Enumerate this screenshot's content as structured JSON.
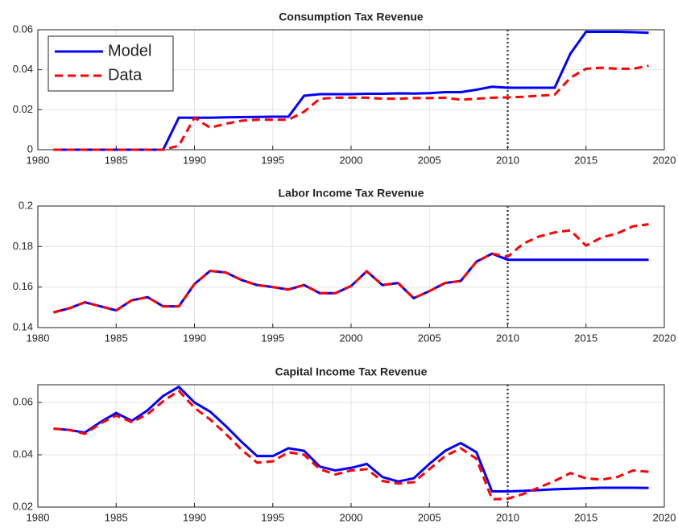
{
  "chart_data": [
    {
      "type": "line",
      "title": "Consumption Tax Revenue",
      "x": [
        1981,
        1982,
        1983,
        1984,
        1985,
        1986,
        1987,
        1988,
        1989,
        1990,
        1991,
        1992,
        1993,
        1994,
        1995,
        1996,
        1997,
        1998,
        1999,
        2000,
        2001,
        2002,
        2003,
        2004,
        2005,
        2006,
        2007,
        2008,
        2009,
        2010,
        2011,
        2012,
        2013,
        2014,
        2015,
        2016,
        2017,
        2018,
        2019
      ],
      "series": [
        {
          "name": "Model",
          "color": "#0000ff",
          "dash": false,
          "values": [
            0,
            0,
            0,
            0,
            0,
            0,
            0,
            0,
            0.016,
            0.016,
            0.016,
            0.0162,
            0.0163,
            0.0164,
            0.0165,
            0.0165,
            0.027,
            0.0278,
            0.0278,
            0.0278,
            0.028,
            0.028,
            0.0282,
            0.0281,
            0.0283,
            0.0288,
            0.0288,
            0.03,
            0.0315,
            0.031,
            0.031,
            0.031,
            0.031,
            0.048,
            0.059,
            0.059,
            0.059,
            0.0588,
            0.0585
          ]
        },
        {
          "name": "Data",
          "color": "#ff0000",
          "dash": true,
          "values": [
            0,
            0,
            0,
            0,
            0,
            0,
            0,
            0,
            0.002,
            0.016,
            0.011,
            0.013,
            0.0145,
            0.015,
            0.015,
            0.015,
            0.019,
            0.0255,
            0.026,
            0.026,
            0.026,
            0.0255,
            0.0255,
            0.0258,
            0.0258,
            0.026,
            0.025,
            0.0255,
            0.026,
            0.0262,
            0.0265,
            0.027,
            0.0275,
            0.036,
            0.0405,
            0.041,
            0.0405,
            0.0405,
            0.042
          ]
        }
      ],
      "xlim": [
        1980,
        2020
      ],
      "xticks": [
        1980,
        1985,
        1990,
        1995,
        2000,
        2005,
        2010,
        2015,
        2020
      ],
      "ylim": [
        0,
        0.06
      ],
      "yticks": [
        0,
        0.02,
        0.04,
        0.06
      ],
      "grid": true,
      "legend": "upper left",
      "vline": 2010
    },
    {
      "type": "line",
      "title": "Labor Income Tax Revenue",
      "x": [
        1981,
        1982,
        1983,
        1984,
        1985,
        1986,
        1987,
        1988,
        1989,
        1990,
        1991,
        1992,
        1993,
        1994,
        1995,
        1996,
        1997,
        1998,
        1999,
        2000,
        2001,
        2002,
        2003,
        2004,
        2005,
        2006,
        2007,
        2008,
        2009,
        2010,
        2011,
        2012,
        2013,
        2014,
        2015,
        2016,
        2017,
        2018,
        2019
      ],
      "series": [
        {
          "color": "#0000ff",
          "dash": false,
          "values": [
            0.1475,
            0.1495,
            0.1525,
            0.1505,
            0.1485,
            0.1535,
            0.155,
            0.1505,
            0.1505,
            0.1615,
            0.168,
            0.1672,
            0.1635,
            0.161,
            0.16,
            0.1588,
            0.161,
            0.157,
            0.157,
            0.1605,
            0.1678,
            0.161,
            0.162,
            0.1545,
            0.158,
            0.162,
            0.163,
            0.1725,
            0.1765,
            0.1735,
            0.1735,
            0.1735,
            0.1735,
            0.1735,
            0.1735,
            0.1735,
            0.1735,
            0.1735,
            0.1735
          ]
        },
        {
          "color": "#ff0000",
          "dash": true,
          "values": [
            0.1475,
            0.1495,
            0.1525,
            0.1505,
            0.1485,
            0.1535,
            0.155,
            0.1505,
            0.1505,
            0.1615,
            0.168,
            0.1672,
            0.1635,
            0.161,
            0.16,
            0.1588,
            0.161,
            0.157,
            0.157,
            0.1605,
            0.1678,
            0.161,
            0.162,
            0.1545,
            0.158,
            0.162,
            0.163,
            0.1725,
            0.1765,
            0.175,
            0.1815,
            0.185,
            0.187,
            0.188,
            0.1805,
            0.1845,
            0.1865,
            0.19,
            0.191
          ]
        }
      ],
      "xlim": [
        1980,
        2020
      ],
      "xticks": [
        1980,
        1985,
        1990,
        1995,
        2000,
        2005,
        2010,
        2015,
        2020
      ],
      "ylim": [
        0.14,
        0.2
      ],
      "yticks": [
        0.14,
        0.16,
        0.18,
        0.2
      ],
      "grid": true,
      "vline": 2010
    },
    {
      "type": "line",
      "title": "Capital Income Tax Revenue",
      "x": [
        1981,
        1982,
        1983,
        1984,
        1985,
        1986,
        1987,
        1988,
        1989,
        1990,
        1991,
        1992,
        1993,
        1994,
        1995,
        1996,
        1997,
        1998,
        1999,
        2000,
        2001,
        2002,
        2003,
        2004,
        2005,
        2006,
        2007,
        2008,
        2009,
        2010,
        2011,
        2012,
        2013,
        2014,
        2015,
        2016,
        2017,
        2018,
        2019
      ],
      "series": [
        {
          "color": "#0000ff",
          "dash": false,
          "values": [
            0.05,
            0.0495,
            0.0485,
            0.0525,
            0.056,
            0.053,
            0.057,
            0.0625,
            0.066,
            0.06,
            0.0565,
            0.051,
            0.045,
            0.0395,
            0.0395,
            0.0425,
            0.0415,
            0.0355,
            0.034,
            0.035,
            0.0365,
            0.0315,
            0.0298,
            0.031,
            0.0365,
            0.0415,
            0.0445,
            0.041,
            0.026,
            0.026,
            0.0262,
            0.0265,
            0.0268,
            0.027,
            0.0272,
            0.0274,
            0.0274,
            0.0274,
            0.0273
          ]
        },
        {
          "color": "#ff0000",
          "dash": true,
          "values": [
            0.05,
            0.0495,
            0.048,
            0.052,
            0.055,
            0.0525,
            0.0555,
            0.0605,
            0.0645,
            0.058,
            0.0535,
            0.048,
            0.042,
            0.037,
            0.0375,
            0.041,
            0.04,
            0.0345,
            0.0325,
            0.034,
            0.0345,
            0.03,
            0.029,
            0.0295,
            0.0345,
            0.0395,
            0.0425,
            0.0385,
            0.023,
            0.0232,
            0.025,
            0.0275,
            0.03,
            0.033,
            0.031,
            0.0305,
            0.0315,
            0.034,
            0.0335
          ]
        }
      ],
      "xlim": [
        1980,
        2020
      ],
      "xticks": [
        1980,
        1985,
        1990,
        1995,
        2000,
        2005,
        2010,
        2015,
        2020
      ],
      "ylim": [
        0.02,
        0.0668
      ],
      "yticks": [
        0.02,
        0.04,
        0.06
      ],
      "grid": true,
      "vline": 2010
    }
  ]
}
